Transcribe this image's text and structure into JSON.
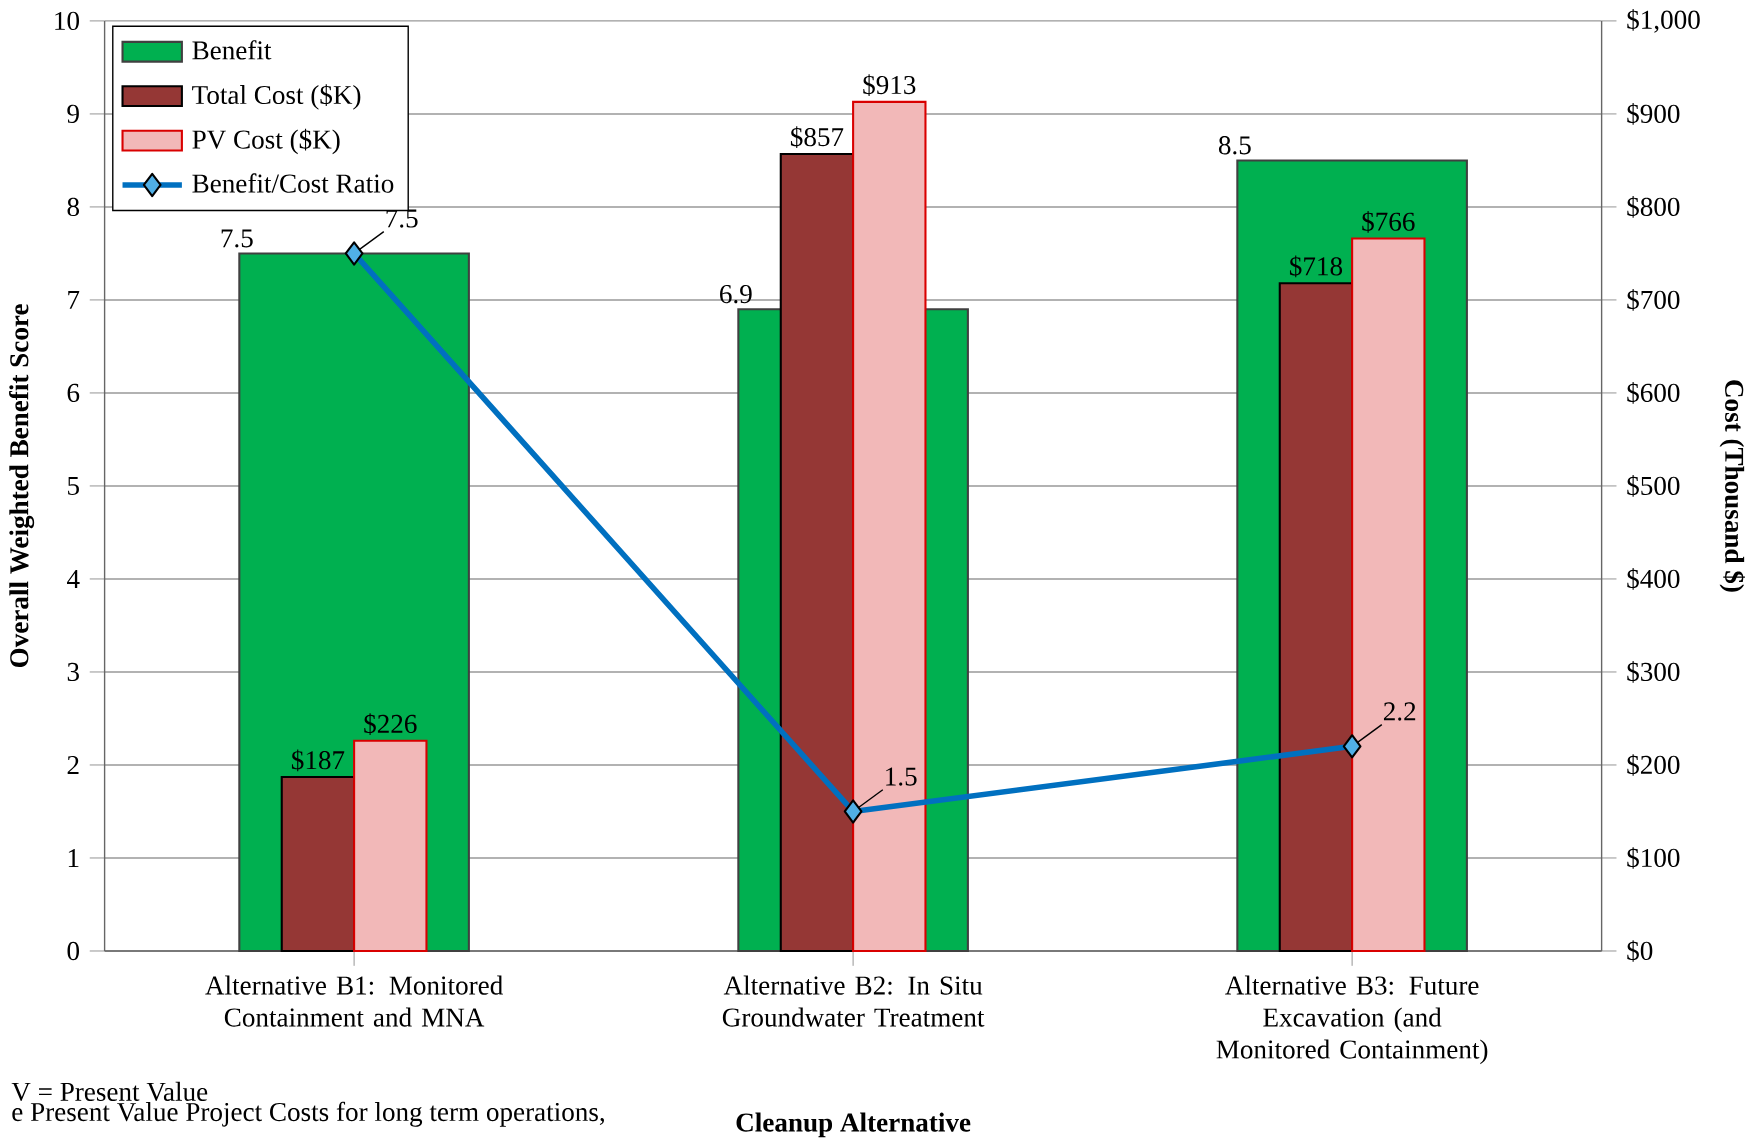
{
  "chart_data": {
    "type": "bar",
    "categories": [
      "Alternative B1: Monitored Containment and MNA",
      "Alternative B2: In Situ Groundwater Treatment",
      "Alternative B3: Future Excavation (and Monitored Containment)"
    ],
    "xlabel": "Cleanup Alternative",
    "ylabel": "Overall Weighted Benefit Score",
    "y2label": "Cost (Thousand $)",
    "ylim": [
      0,
      10
    ],
    "yticks": [
      0,
      1,
      2,
      3,
      4,
      5,
      6,
      7,
      8,
      9,
      10
    ],
    "y2lim": [
      0,
      1000
    ],
    "y2ticks": [
      {
        "value": 0,
        "label": "$0"
      },
      {
        "value": 100,
        "label": "$100"
      },
      {
        "value": 200,
        "label": "$200"
      },
      {
        "value": 300,
        "label": "$300"
      },
      {
        "value": 400,
        "label": "$400"
      },
      {
        "value": 500,
        "label": "$500"
      },
      {
        "value": 600,
        "label": "$600"
      },
      {
        "value": 700,
        "label": "$700"
      },
      {
        "value": 800,
        "label": "$800"
      },
      {
        "value": 900,
        "label": "$900"
      },
      {
        "value": 1000,
        "label": "$1,000"
      }
    ],
    "grid": "y",
    "legend": "top left",
    "series": [
      {
        "name": "Benefit",
        "color": "#00b050",
        "values": [
          7.5,
          6.9,
          8.5
        ],
        "value_labels": [
          "7.5",
          "6.9",
          "8.5"
        ]
      },
      {
        "name": "Total Cost ($K)",
        "axis": "y2",
        "color": "#953735",
        "values": [
          187,
          857,
          718
        ],
        "value_labels": [
          "$187",
          "$857",
          "$718"
        ]
      },
      {
        "name": "PV Cost ($K)",
        "axis": "y2",
        "color": "#f2b8b8",
        "values": [
          226,
          913,
          766
        ],
        "value_labels": [
          "$226",
          "$913",
          "$766"
        ]
      },
      {
        "name": "Benefit/Cost Ratio",
        "type": "line",
        "color": "#0070c0",
        "marker": "diamond",
        "values": [
          7.5,
          1.5,
          2.2
        ],
        "value_labels": [
          "7.5",
          "1.5",
          "2.2"
        ]
      }
    ],
    "annotations": [
      "V = Present Value",
      "e Present Value Project Costs for long term operations,"
    ]
  }
}
